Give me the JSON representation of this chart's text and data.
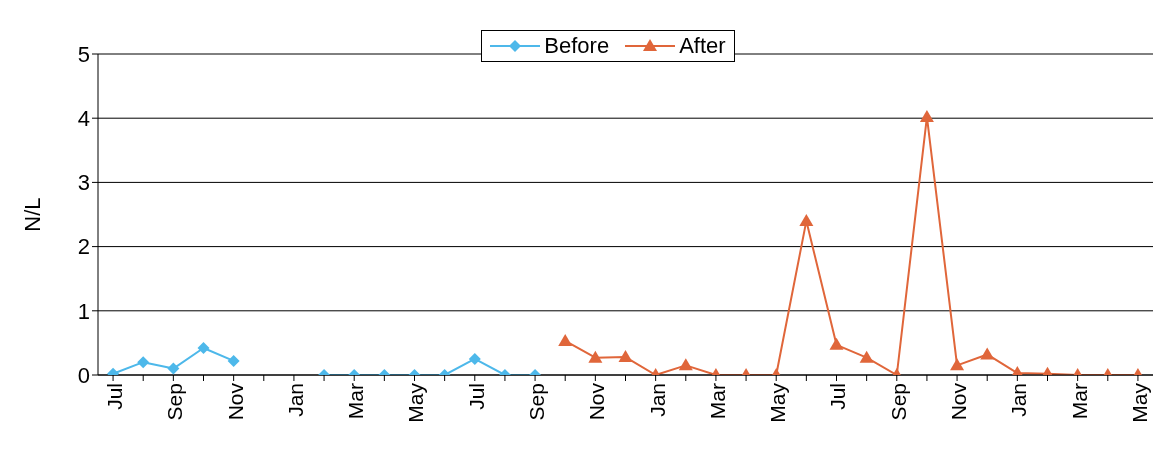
{
  "chart_data": {
    "type": "line",
    "ylabel": "N/L",
    "categories": [
      "Jul",
      null,
      "Sep",
      null,
      "Nov",
      null,
      "Jan",
      null,
      "Mar",
      null,
      "May",
      null,
      "Jul",
      null,
      "Sep",
      null,
      "Nov",
      null,
      "Jan",
      null,
      "Mar",
      null,
      "May",
      null,
      "Jul",
      null,
      "Sep",
      null,
      "Nov",
      null,
      "Jan",
      null,
      "Mar",
      null,
      "May"
    ],
    "series": [
      {
        "name": "Before",
        "color": "#4db8ea",
        "marker": "diamond",
        "values": [
          0.02,
          0.2,
          0.1,
          0.42,
          0.22,
          null,
          null,
          0,
          0,
          0,
          0,
          0,
          0.25,
          0,
          0,
          null,
          null,
          null,
          null,
          null,
          null,
          null,
          null,
          null,
          null,
          null,
          null,
          null,
          null,
          null,
          null,
          null,
          null,
          null,
          null
        ]
      },
      {
        "name": "After",
        "color": "#e0663a",
        "marker": "triangle",
        "values": [
          null,
          null,
          null,
          null,
          null,
          null,
          null,
          null,
          null,
          null,
          null,
          null,
          null,
          null,
          null,
          0.53,
          0.27,
          0.28,
          0,
          0.15,
          0,
          0,
          0,
          2.4,
          0.47,
          0.27,
          0,
          4.02,
          0.15,
          0.32,
          0.03,
          0.02,
          0,
          0,
          0
        ]
      }
    ],
    "ylim": [
      0,
      5
    ],
    "yticks": [
      0,
      1,
      2,
      3,
      4,
      5
    ],
    "grid": "y",
    "legend": "top"
  }
}
